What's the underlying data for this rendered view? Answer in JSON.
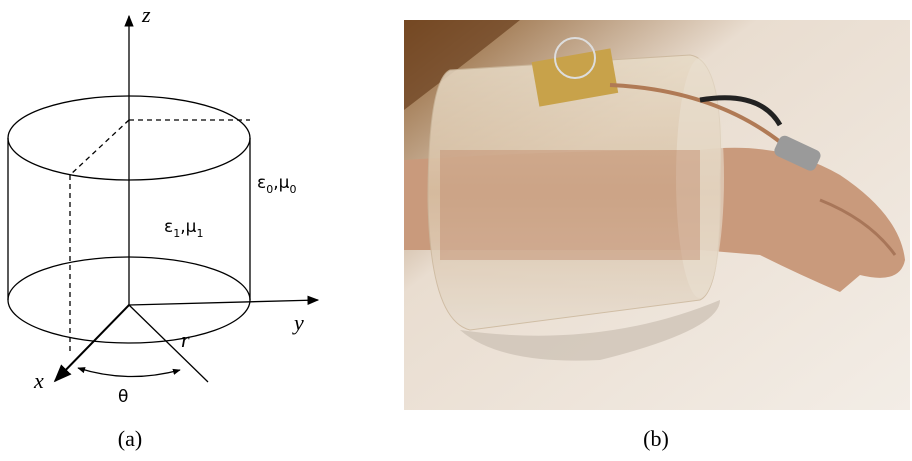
{
  "panel_a": {
    "axes": {
      "z": "z",
      "y": "y",
      "x": "x",
      "r": "r",
      "theta": "θ"
    },
    "outer_medium": {
      "parts": [
        "ε",
        "0",
        ",",
        "μ",
        "0"
      ]
    },
    "inner_medium": {
      "parts": [
        "ε",
        "1",
        ",",
        "μ",
        "1"
      ]
    },
    "caption": "(a)"
  },
  "panel_b": {
    "caption": "(b)"
  }
}
